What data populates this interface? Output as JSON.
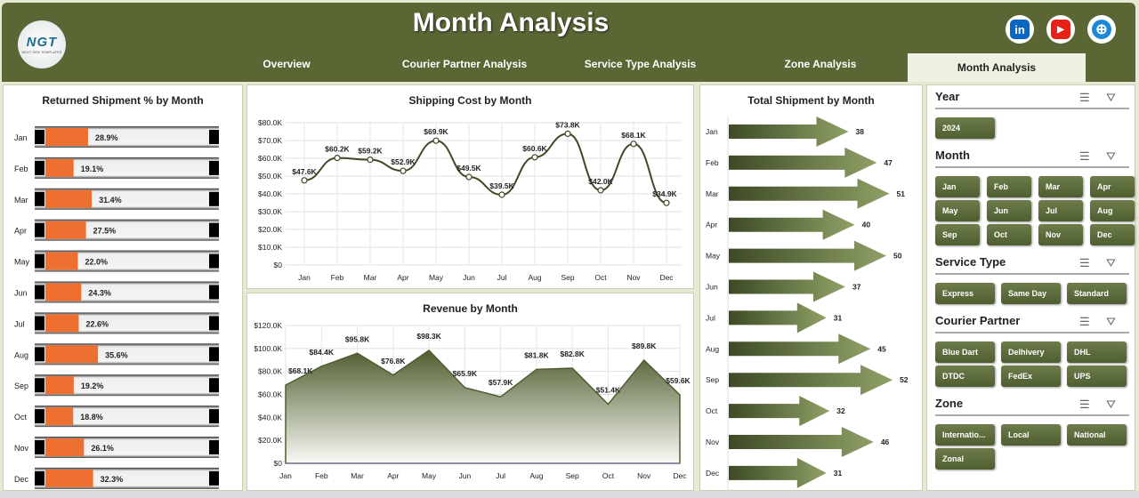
{
  "header": {
    "title": "Month Analysis",
    "logo_text": "NGT",
    "logo_sub": "NEXT GEN TEMPLATES",
    "tabs": [
      {
        "label": "Overview",
        "active": false
      },
      {
        "label": "Courier Partner Analysis",
        "active": false
      },
      {
        "label": "Service Type Analysis",
        "active": false
      },
      {
        "label": "Zone Analysis",
        "active": false
      },
      {
        "label": "Month Analysis",
        "active": true
      }
    ],
    "social": [
      {
        "name": "linkedin-icon",
        "label": "in",
        "color": "#0a66c2"
      },
      {
        "name": "youtube-icon",
        "label": "▶",
        "color": "#e62117"
      },
      {
        "name": "globe-icon",
        "label": "⊕",
        "color": "#1e88d8"
      }
    ]
  },
  "colors": {
    "header": "#5a6633",
    "bar": "#ed7031",
    "accent": "#6d7c4a"
  },
  "chart_data": [
    {
      "type": "bar",
      "title": "Returned Shipment % by Month",
      "categories": [
        "Jan",
        "Feb",
        "Mar",
        "Apr",
        "May",
        "Jun",
        "Jul",
        "Aug",
        "Sep",
        "Oct",
        "Nov",
        "Dec"
      ],
      "values": [
        28.9,
        19.1,
        31.4,
        27.5,
        22.0,
        24.3,
        22.6,
        35.6,
        19.2,
        18.8,
        26.1,
        32.3
      ],
      "labels": [
        "28.9%",
        "19.1%",
        "31.4%",
        "27.5%",
        "22.0%",
        "24.3%",
        "22.6%",
        "35.6%",
        "19.2%",
        "18.8%",
        "26.1%",
        "32.3%"
      ]
    },
    {
      "type": "line",
      "title": "Shipping Cost by Month",
      "categories": [
        "Jan",
        "Feb",
        "Mar",
        "Apr",
        "May",
        "Jun",
        "Jul",
        "Aug",
        "Sep",
        "Oct",
        "Nov",
        "Dec"
      ],
      "values": [
        47.6,
        60.2,
        59.2,
        52.9,
        69.9,
        49.5,
        39.5,
        60.6,
        73.8,
        42.0,
        68.1,
        34.9
      ],
      "labels": [
        "$47.6K",
        "$60.2K",
        "$59.2K",
        "$52.9K",
        "$69.9K",
        "$49.5K",
        "$39.5K",
        "$60.6K",
        "$73.8K",
        "$42.0K",
        "$68.1K",
        "$34.9K"
      ],
      "yticks": [
        "$0",
        "$10.0K",
        "$20.0K",
        "$30.0K",
        "$40.0K",
        "$50.0K",
        "$60.0K",
        "$70.0K",
        "$80.0K"
      ],
      "ylim": [
        0,
        80
      ]
    },
    {
      "type": "area",
      "title": "Revenue by Month",
      "categories": [
        "Jan",
        "Feb",
        "Mar",
        "Apr",
        "May",
        "Jun",
        "Jul",
        "Aug",
        "Sep",
        "Oct",
        "Nov",
        "Dec"
      ],
      "values": [
        68.1,
        84.4,
        95.8,
        76.8,
        98.3,
        65.9,
        57.9,
        81.8,
        82.8,
        51.4,
        89.8,
        59.6
      ],
      "labels": [
        "$68.1K",
        "$84.4K",
        "$95.8K",
        "$76.8K",
        "$98.3K",
        "$65.9K",
        "$57.9K",
        "$81.8K",
        "$82.8K",
        "$51.4K",
        "$89.8K",
        "$59.6K"
      ],
      "yticks": [
        "$0",
        "$20.0K",
        "$40.0K",
        "$60.0K",
        "$80.0K",
        "$100.0K",
        "$120.0K"
      ],
      "ylim": [
        0,
        120
      ]
    },
    {
      "type": "bar",
      "title": "Total Shipment by Month",
      "categories": [
        "Jan",
        "Feb",
        "Mar",
        "Apr",
        "May",
        "Jun",
        "Jul",
        "Aug",
        "Sep",
        "Oct",
        "Nov",
        "Dec"
      ],
      "values": [
        38,
        47,
        51,
        40,
        50,
        37,
        31,
        45,
        52,
        32,
        46,
        31
      ]
    }
  ],
  "slicers": [
    {
      "title": "Year",
      "items": [
        "2024"
      ],
      "cols": 4
    },
    {
      "title": "Month",
      "items": [
        "Jan",
        "Feb",
        "Mar",
        "Apr",
        "May",
        "Jun",
        "Jul",
        "Aug",
        "Sep",
        "Oct",
        "Nov",
        "Dec"
      ],
      "cols": 4
    },
    {
      "title": "Service Type",
      "items": [
        "Express",
        "Same Day",
        "Standard"
      ],
      "cols": 3
    },
    {
      "title": "Courier Partner",
      "items": [
        "Blue Dart",
        "Delhivery",
        "DHL",
        "DTDC",
        "FedEx",
        "UPS"
      ],
      "cols": 3
    },
    {
      "title": "Zone",
      "items": [
        "Internatio...",
        "Local",
        "National",
        "Zonal"
      ],
      "cols": 3
    }
  ]
}
